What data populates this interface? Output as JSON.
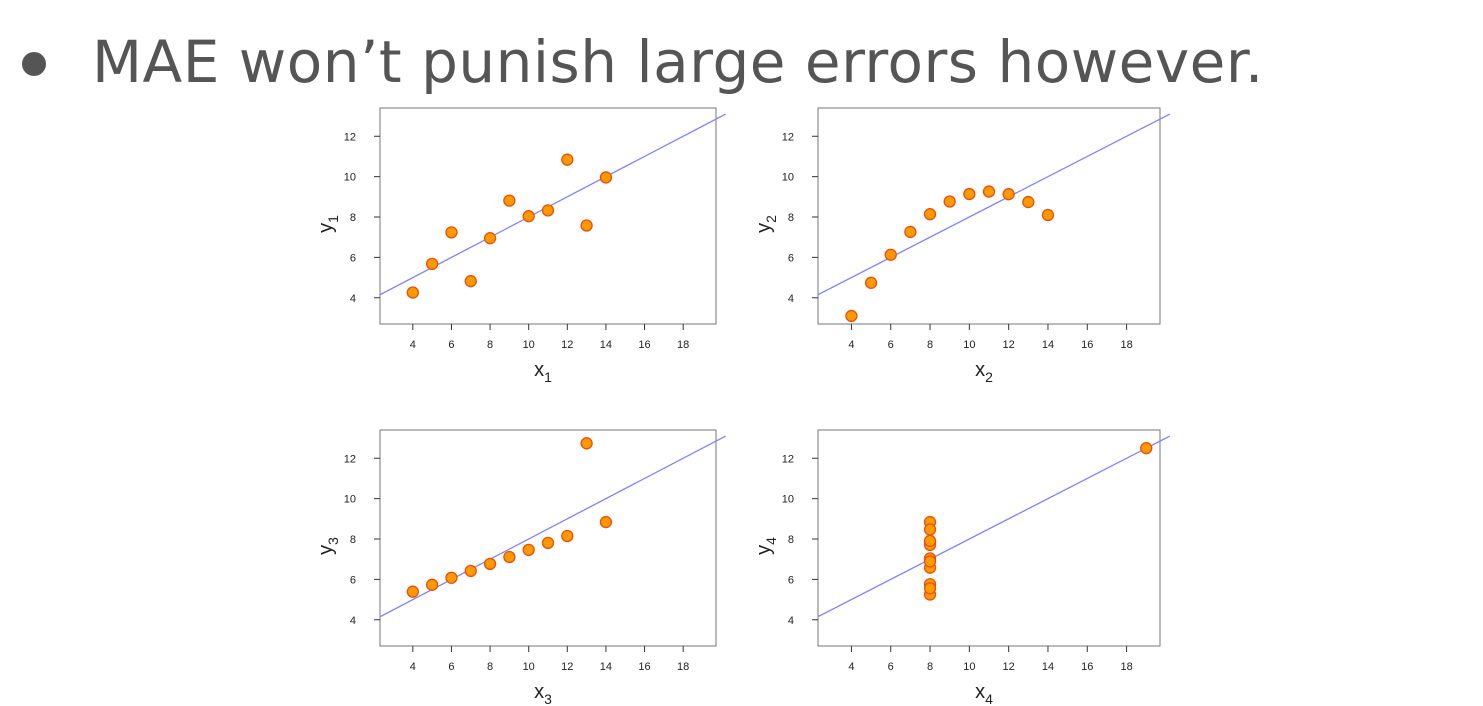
{
  "slide": {
    "bullet_text": "MAE won’t punish large errors however."
  },
  "colors": {
    "text": "#555555",
    "point_fill": "#ff9900",
    "point_stroke": "#e8500a",
    "fit_line": "#8080ff",
    "frame": "#777777"
  },
  "chart_data": [
    {
      "type": "scatter",
      "xlabel": "x",
      "xlabel_sub": "1",
      "ylabel": "y",
      "ylabel_sub": "1",
      "xlim": [
        2.3,
        19.7
      ],
      "ylim": [
        2.7,
        13.4
      ],
      "xticks": [
        4,
        6,
        8,
        10,
        12,
        14,
        16,
        18
      ],
      "yticks": [
        4,
        6,
        8,
        10,
        12
      ],
      "x": [
        10,
        8,
        13,
        9,
        11,
        14,
        6,
        4,
        12,
        7,
        5
      ],
      "y": [
        8.04,
        6.95,
        7.58,
        8.81,
        8.33,
        9.96,
        7.24,
        4.26,
        10.84,
        4.82,
        5.68
      ],
      "fit": {
        "intercept": 3.0,
        "slope": 0.5
      }
    },
    {
      "type": "scatter",
      "xlabel": "x",
      "xlabel_sub": "2",
      "ylabel": "y",
      "ylabel_sub": "2",
      "xlim": [
        2.3,
        19.7
      ],
      "ylim": [
        2.7,
        13.4
      ],
      "xticks": [
        4,
        6,
        8,
        10,
        12,
        14,
        16,
        18
      ],
      "yticks": [
        4,
        6,
        8,
        10,
        12
      ],
      "x": [
        10,
        8,
        13,
        9,
        11,
        14,
        6,
        4,
        12,
        7,
        5
      ],
      "y": [
        9.14,
        8.14,
        8.74,
        8.77,
        9.26,
        8.1,
        6.13,
        3.1,
        9.13,
        7.26,
        4.74
      ],
      "fit": {
        "intercept": 3.0,
        "slope": 0.5
      }
    },
    {
      "type": "scatter",
      "xlabel": "x",
      "xlabel_sub": "3",
      "ylabel": "y",
      "ylabel_sub": "3",
      "xlim": [
        2.3,
        19.7
      ],
      "ylim": [
        2.7,
        13.4
      ],
      "xticks": [
        4,
        6,
        8,
        10,
        12,
        14,
        16,
        18
      ],
      "yticks": [
        4,
        6,
        8,
        10,
        12
      ],
      "x": [
        10,
        8,
        13,
        9,
        11,
        14,
        6,
        4,
        12,
        7,
        5
      ],
      "y": [
        7.46,
        6.77,
        12.74,
        7.11,
        7.81,
        8.84,
        6.08,
        5.39,
        8.15,
        6.42,
        5.73
      ],
      "fit": {
        "intercept": 3.0,
        "slope": 0.5
      }
    },
    {
      "type": "scatter",
      "xlabel": "x",
      "xlabel_sub": "4",
      "ylabel": "y",
      "ylabel_sub": "4",
      "xlim": [
        2.3,
        19.7
      ],
      "ylim": [
        2.7,
        13.4
      ],
      "xticks": [
        4,
        6,
        8,
        10,
        12,
        14,
        16,
        18
      ],
      "yticks": [
        4,
        6,
        8,
        10,
        12
      ],
      "x": [
        8,
        8,
        8,
        8,
        8,
        8,
        8,
        19,
        8,
        8,
        8
      ],
      "y": [
        6.58,
        5.76,
        7.71,
        8.84,
        8.47,
        7.04,
        5.25,
        12.5,
        5.56,
        7.91,
        6.89
      ],
      "fit": {
        "intercept": 3.0,
        "slope": 0.5
      }
    }
  ]
}
